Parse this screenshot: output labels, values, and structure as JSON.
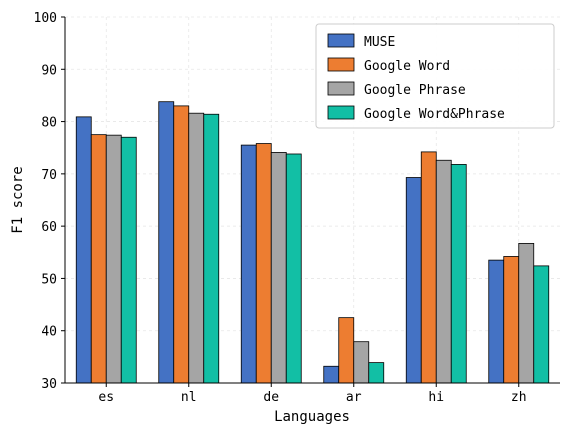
{
  "chart_data": {
    "type": "bar",
    "categories": [
      "es",
      "nl",
      "de",
      "ar",
      "hi",
      "zh"
    ],
    "series": [
      {
        "name": "MUSE",
        "color": "#4472c4",
        "values": [
          80.9,
          83.8,
          75.5,
          33.2,
          69.3,
          53.5
        ]
      },
      {
        "name": "Google Word",
        "color": "#ed7d31",
        "values": [
          77.5,
          83.0,
          75.8,
          42.5,
          74.2,
          54.2
        ]
      },
      {
        "name": "Google Phrase",
        "color": "#a5a5a5",
        "values": [
          77.4,
          81.6,
          74.1,
          37.9,
          72.6,
          56.7
        ]
      },
      {
        "name": "Google Word&Phrase",
        "color": "#12bfa5",
        "values": [
          77.0,
          81.4,
          73.8,
          33.9,
          71.8,
          52.4
        ]
      }
    ],
    "xlabel": "Languages",
    "ylabel": "F1 score",
    "ylim": [
      30,
      100
    ],
    "yticks": [
      "30",
      "40",
      "50",
      "60",
      "70",
      "80",
      "90",
      "100"
    ],
    "grid": true,
    "legend_position": "top-right"
  }
}
